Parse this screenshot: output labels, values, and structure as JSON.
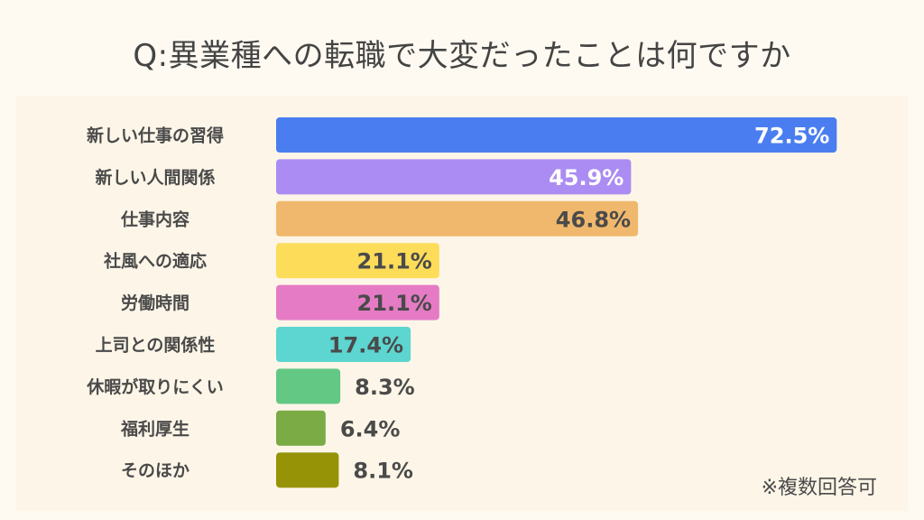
{
  "chart_data": {
    "type": "bar",
    "orientation": "horizontal",
    "title": "Q:異業種への転職で大変だったことは何ですか",
    "categories": [
      "新しい仕事の習得",
      "新しい人間関係",
      "仕事内容",
      "社風への適応",
      "労働時間",
      "上司との関係性",
      "休暇が取りにくい",
      "福利厚生",
      "そのほか"
    ],
    "values": [
      72.5,
      45.9,
      46.8,
      21.1,
      21.1,
      17.4,
      8.3,
      6.4,
      8.1
    ],
    "value_labels": [
      "72.5%",
      "45.9%",
      "46.8%",
      "21.1%",
      "21.1%",
      "17.4%",
      "8.3%",
      "6.4%",
      "8.1%"
    ],
    "colors": [
      "#4a7ef0",
      "#ab8cf2",
      "#f0b86c",
      "#fddc5a",
      "#e57bc5",
      "#5dd5d0",
      "#62c884",
      "#7aab45",
      "#979307"
    ],
    "label_colors": [
      "#ffffff",
      "#ffffff",
      "#4a4a4a",
      "#4a4a4a",
      "#4a4a4a",
      "#4a4a4a",
      "#4a4a4a",
      "#4a4a4a",
      "#4a4a4a"
    ],
    "xlim": [
      0,
      100
    ],
    "grid": false,
    "note": "※複数回答可"
  }
}
